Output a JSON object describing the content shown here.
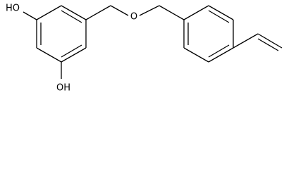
{
  "atoms": [
    {
      "label": "HO"
    },
    {
      "label": "OH"
    },
    {
      "label": "O"
    }
  ]
}
